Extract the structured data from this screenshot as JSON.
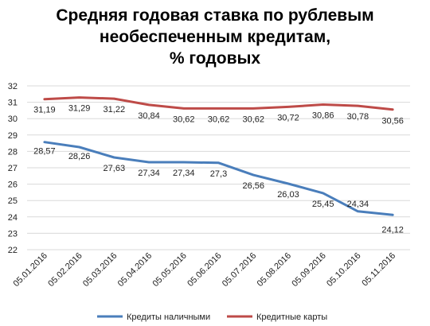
{
  "chart_data": {
    "type": "line",
    "title_lines": [
      "Средняя годовая ставка по рублевым",
      "необеспеченным кредитам,",
      "% годовых"
    ],
    "categories": [
      "05.01.2016",
      "05.02.2016",
      "05.03.2016",
      "05.04.2016",
      "05.05.2016",
      "05.06.2016",
      "05.07.2016",
      "05.08.2016",
      "05.09.2016",
      "05.10.2016",
      "05.11.2016"
    ],
    "series": [
      {
        "name": "Кредиты наличными",
        "color": "#4a7ebb",
        "values": [
          28.57,
          28.26,
          27.63,
          27.34,
          27.34,
          27.3,
          26.56,
          26.03,
          25.45,
          24.34,
          24.12
        ],
        "labels": [
          "28,57",
          "28,26",
          "27,63",
          "27,34",
          "27,34",
          "27,3",
          "26,56",
          "26,03",
          "25,45",
          "24,34",
          "24,12"
        ]
      },
      {
        "name": "Кредитные карты",
        "color": "#be4b48",
        "values": [
          31.19,
          31.29,
          31.22,
          30.84,
          30.62,
          30.62,
          30.62,
          30.72,
          30.86,
          30.78,
          30.56
        ],
        "labels": [
          "31,19",
          "31,29",
          "31,22",
          "30,84",
          "30,62",
          "30,62",
          "30,62",
          "30,72",
          "30,86",
          "30,78",
          "30,56"
        ]
      }
    ],
    "ylim": [
      22,
      32
    ],
    "yticks": [
      22,
      23,
      24,
      25,
      26,
      27,
      28,
      29,
      30,
      31,
      32
    ],
    "grid": true,
    "legend_position": "bottom"
  }
}
